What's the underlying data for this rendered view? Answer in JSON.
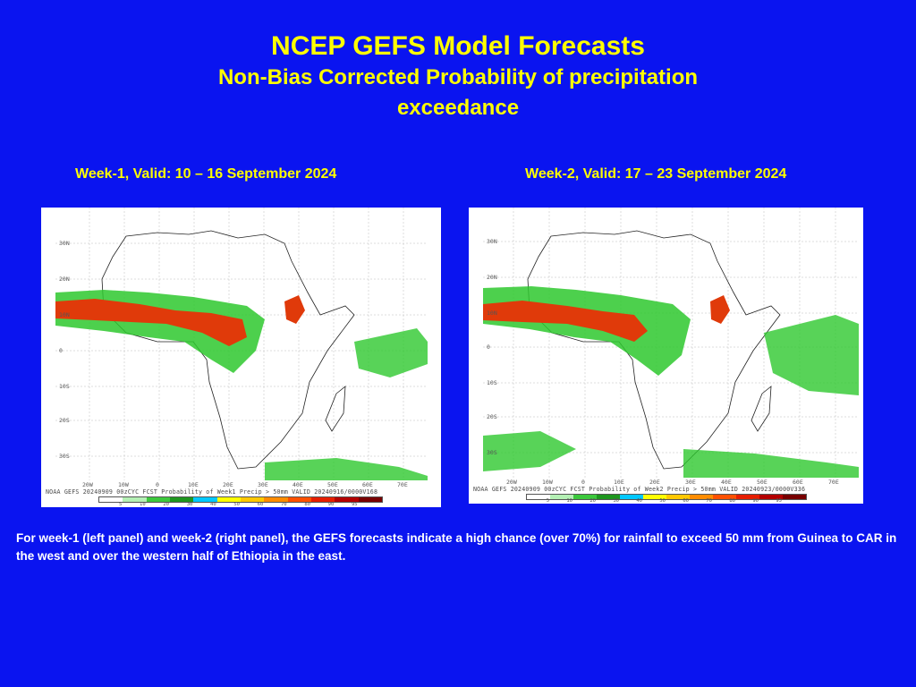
{
  "header": {
    "title": "NCEP GEFS Model Forecasts",
    "subtitle": "Non-Bias Corrected Probability of precipitation exceedance"
  },
  "panels": [
    {
      "label": "Week-1, Valid: 10 – 16 September  2024",
      "caption": "NOAA GEFS 20240909 00zCYC FCST Probability of Week1 Precip > 50mm  VALID 20240916/0000V168",
      "lat_labels": [
        "30N",
        "20N",
        "10N",
        "0",
        "10S",
        "20S",
        "30S"
      ],
      "lon_labels": [
        "20W",
        "10W",
        "0",
        "10E",
        "20E",
        "30E",
        "40E",
        "50E",
        "60E",
        "70E"
      ]
    },
    {
      "label": "Week-2, Valid: 17  – 23 September 2024",
      "caption": "NOAA GEFS 20240909 00zCYC FCST Probability of Week2 Precip > 50mm  VALID 20240923/0000V336",
      "lat_labels": [
        "30N",
        "20N",
        "10N",
        "0",
        "10S",
        "20S",
        "30S"
      ],
      "lon_labels": [
        "20W",
        "10W",
        "0",
        "10E",
        "20E",
        "30E",
        "40E",
        "50E",
        "60E",
        "70E"
      ]
    }
  ],
  "legend": {
    "ticks": [
      "5",
      "10",
      "20",
      "30",
      "40",
      "50",
      "60",
      "70",
      "80",
      "90",
      "95"
    ],
    "colors": [
      "#ffffff",
      "#b4f0b4",
      "#3cc83c",
      "#1e961e",
      "#00c8ff",
      "#ffff00",
      "#ffc800",
      "#ff8c00",
      "#ff5000",
      "#e61e00",
      "#b40000",
      "#780000"
    ]
  },
  "footer": {
    "text": "For week-1 (left panel) and week-2 (right panel), the GEFS forecasts indicate a high chance (over 70%) for rainfall to exceed 50 mm from Guinea to CAR in the west and over the western half of Ethiopia in the east."
  }
}
